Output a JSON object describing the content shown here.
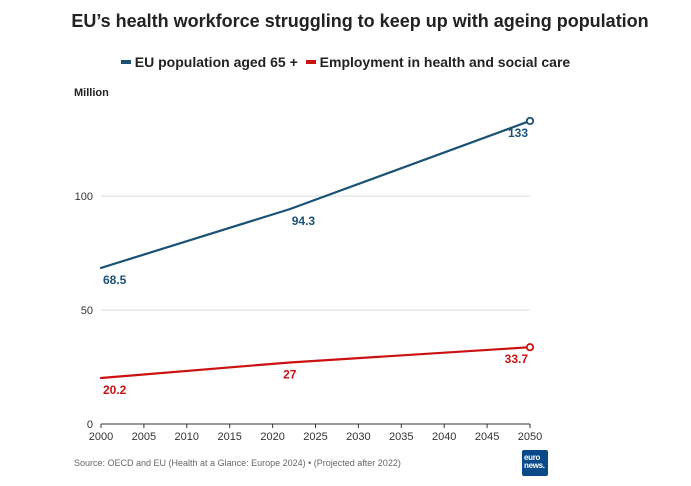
{
  "chart_data": {
    "type": "line",
    "title": "EU’s health workforce struggling to keep up with ageing population",
    "ylabel": "Million",
    "xlabel": "",
    "x": [
      2000,
      2022,
      2050
    ],
    "xticks": [
      2000,
      2005,
      2010,
      2015,
      2020,
      2025,
      2030,
      2035,
      2040,
      2045,
      2050
    ],
    "yticks": [
      0,
      50,
      100
    ],
    "xlim": [
      2000,
      2050
    ],
    "ylim": [
      0,
      140
    ],
    "grid": true,
    "legend_position": "top",
    "series": [
      {
        "name": "EU population aged 65 +",
        "color": "#1a5276",
        "points": [
          {
            "x": 2000,
            "y": 68.5,
            "label": "68.5"
          },
          {
            "x": 2022,
            "y": 94.3,
            "label": "94.3"
          },
          {
            "x": 2050,
            "y": 133,
            "label": "133"
          }
        ]
      },
      {
        "name": "Employment in health and social care",
        "color": "#cc1111",
        "points": [
          {
            "x": 2000,
            "y": 20.2,
            "label": "20.2"
          },
          {
            "x": 2022,
            "y": 27,
            "label": "27"
          },
          {
            "x": 2050,
            "y": 33.7,
            "label": "33.7"
          }
        ]
      }
    ]
  },
  "source": "Source: OECD and EU (Health at a Glance: Europe 2024) • (Projected after 2022)",
  "logo": {
    "line1": "euro",
    "line2": "news."
  }
}
